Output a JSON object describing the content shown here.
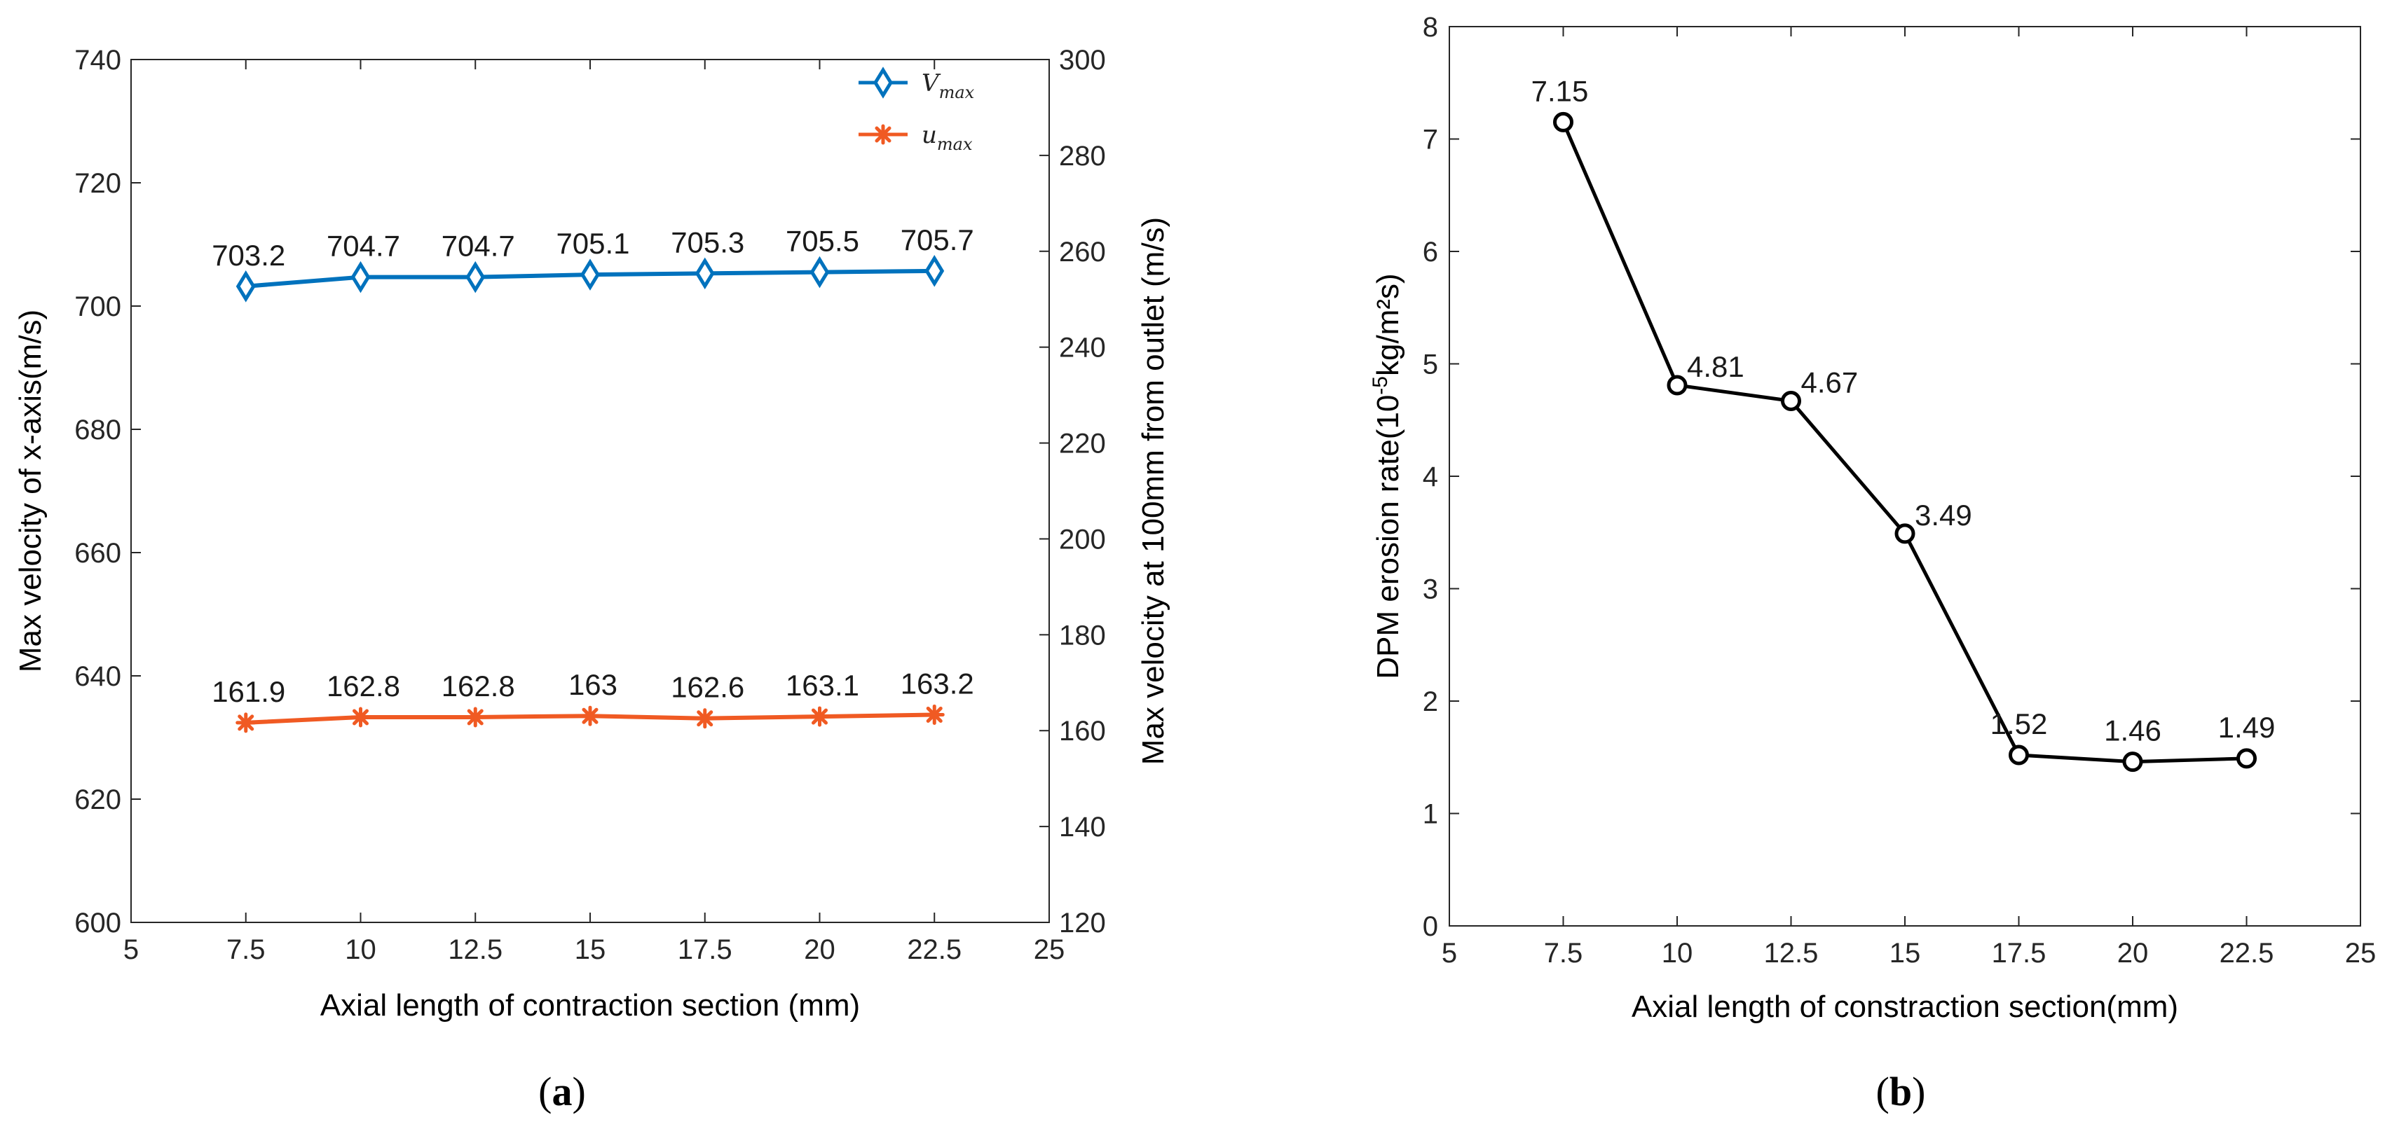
{
  "chart_data": [
    {
      "type": "line",
      "caption_letter": "a",
      "xlabel": "Axial length of contraction section (mm)",
      "ylabel_left": "Max velocity of  x-axis(m/s)",
      "ylabel_right": "Max velocity at 100mm from outlet (m/s)",
      "xlim": [
        5,
        25
      ],
      "xticks": [
        5,
        7.5,
        10,
        12.5,
        15,
        17.5,
        20,
        22.5,
        25
      ],
      "xtick_labels": [
        "5",
        "7.5",
        "10",
        "12.5",
        "15",
        "17.5",
        "20",
        "22.5",
        "25"
      ],
      "ylim_left": [
        600,
        740
      ],
      "yticks_left": [
        "600",
        "620",
        "640",
        "660",
        "680",
        "700",
        "720",
        "740"
      ],
      "ylim_right": [
        120,
        300
      ],
      "yticks_right": [
        "120",
        "140",
        "160",
        "180",
        "200",
        "220",
        "240",
        "260",
        "280",
        "300"
      ],
      "x": [
        7.5,
        10,
        12.5,
        15,
        17.5,
        20,
        22.5
      ],
      "legend_position": "top-right",
      "series": [
        {
          "name": "V_max",
          "legend_base": "V",
          "legend_sub": "max",
          "axis": "left",
          "color": "#0072BD",
          "marker": "diamond",
          "values": [
            703.2,
            704.7,
            704.7,
            705.1,
            705.3,
            705.5,
            705.7
          ],
          "labels": [
            "703.2",
            "704.7",
            "704.7",
            "705.1",
            "705.3",
            "705.5",
            "705.7"
          ]
        },
        {
          "name": "u_max",
          "legend_base": "u",
          "legend_sub": "max",
          "axis": "left",
          "color": "#F05A23",
          "marker": "asterisk",
          "values": [
            632.4,
            633.3,
            633.3,
            633.5,
            633.1,
            633.4,
            633.7
          ],
          "labels": [
            "161.9",
            "162.8",
            "162.8",
            "163",
            "162.6",
            "163.1",
            "163.2"
          ]
        }
      ]
    },
    {
      "type": "line",
      "caption_letter": "b",
      "xlabel": "Axial length of constraction section(mm)",
      "ylabel_prefix": "DPM erosion rate(10",
      "ylabel_sup": "-5",
      "ylabel_suffix": "kg/m²s)",
      "xlim": [
        5,
        25
      ],
      "xticks": [
        5,
        7.5,
        10,
        12.5,
        15,
        17.5,
        20,
        22.5,
        25
      ],
      "xtick_labels": [
        "5",
        "7.5",
        "10",
        "12.5",
        "15",
        "17.5",
        "20",
        "22.5",
        "25"
      ],
      "ylim": [
        0,
        8
      ],
      "yticks": [
        "0",
        "1",
        "2",
        "3",
        "4",
        "5",
        "6",
        "7",
        "8"
      ],
      "x": [
        7.5,
        10,
        12.5,
        15,
        17.5,
        20,
        22.5
      ],
      "series": [
        {
          "color": "#000000",
          "marker": "circle",
          "values": [
            7.15,
            4.81,
            4.67,
            3.49,
            1.52,
            1.46,
            1.49
          ],
          "labels": [
            "7.15",
            "4.81",
            "4.67",
            "3.49",
            "1.52",
            "1.46",
            "1.49"
          ]
        }
      ]
    }
  ]
}
